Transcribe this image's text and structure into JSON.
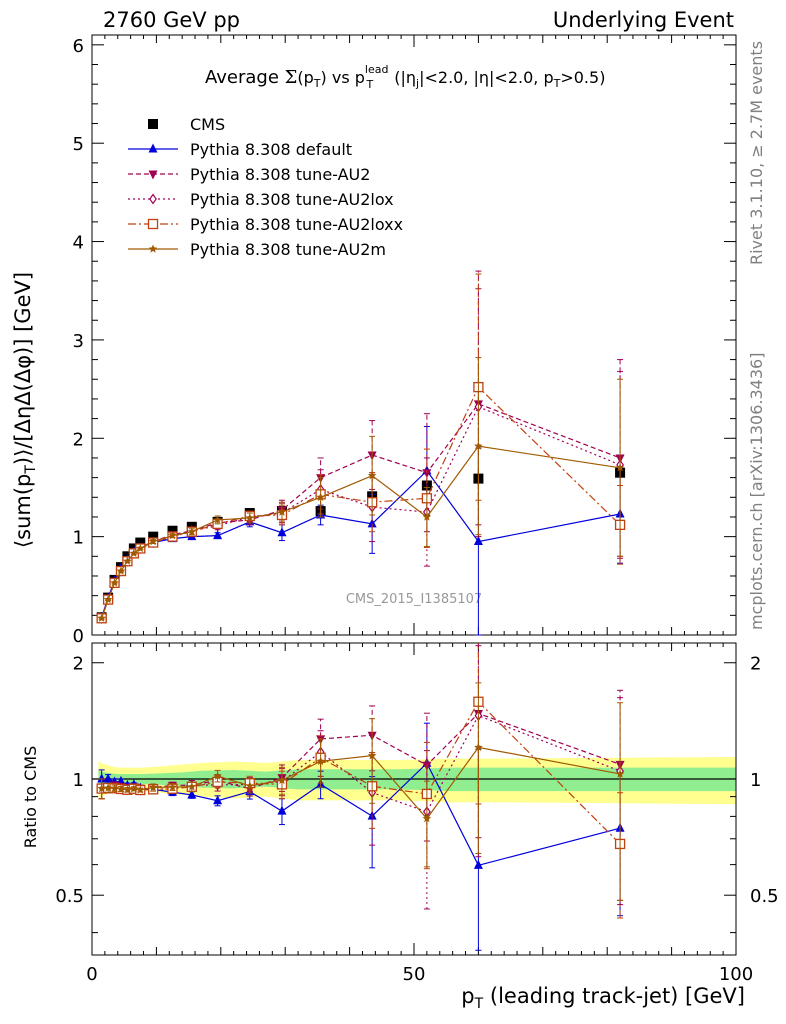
{
  "header": {
    "left": "2760 GeV pp",
    "right": "Underlying Event"
  },
  "side_labels": {
    "rivet": "Rivet 3.1.10, ≥ 2.7M events",
    "mcplots": "mcplots.cern.ch [arXiv:1306.3436]"
  },
  "watermark": "CMS_2015_I1385107",
  "chart_data": {
    "type": "line",
    "title": "Average Σ(pT) vs pT^lead (|ηj|<2.0, |η|<2.0, pT>0.5)",
    "title_parts": {
      "a": "Average ",
      "sigma": "Σ",
      "b": "(p",
      "sub_t": "T",
      "c": ") vs p",
      "sup_lead": "lead",
      "sub_t2": "T",
      "d": " (|η",
      "sub_j": "j",
      "e": "|<2.0, |η|<2.0, p",
      "sub_t3": "T",
      "f": ">0.5)"
    },
    "xlabel": "p_T (leading track-jet) [GeV]",
    "xlabel_parts": {
      "p": "p",
      "sub": "T",
      "rest": " (leading track-jet) [GeV]"
    },
    "ylabel": "⟨sum(p_T)⟩/[ΔηΔ(Δφ)] [GeV]",
    "ylabel_parts": {
      "a": "⟨sum(p",
      "sub": "T",
      "b": ")⟩/[ΔηΔ(Δφ)] [GeV]"
    },
    "ratio_ylabel": "Ratio to CMS",
    "xlim": [
      0,
      100
    ],
    "ylim": [
      0,
      6.1
    ],
    "ratio_ylim": [
      0.35,
      2.25
    ],
    "x_ticks": [
      0,
      50,
      100
    ],
    "y_ticks": [
      0,
      1,
      2,
      3,
      4,
      5,
      6
    ],
    "ratio_ticks": [
      0.5,
      1,
      2
    ],
    "legend_position": "top-left",
    "x": [
      1.5,
      2.5,
      3.5,
      4.5,
      5.5,
      6.5,
      7.5,
      9.5,
      12.5,
      15.5,
      19.5,
      24.5,
      29.5,
      35.5,
      43.5,
      52.0,
      60.0,
      82.0
    ],
    "series": [
      {
        "name": "CMS",
        "color": "#000000",
        "marker": "square-filled",
        "values": [
          0.18,
          0.38,
          0.56,
          0.69,
          0.8,
          0.88,
          0.94,
          1.0,
          1.06,
          1.1,
          1.15,
          1.24,
          1.26,
          1.26,
          1.41,
          1.52,
          1.59,
          1.65
        ],
        "errors": [
          0.01,
          0.01,
          0.01,
          0.01,
          0.01,
          0.01,
          0.01,
          0.01,
          0.01,
          0.01,
          0.01,
          0.01,
          0.01,
          0.02,
          0.04,
          0.06,
          0.1,
          0.15
        ]
      },
      {
        "name": "Pythia 8.308 default",
        "color": "#0000dd",
        "marker": "triangle-up",
        "dash": "",
        "values": [
          0.18,
          0.38,
          0.55,
          0.68,
          0.77,
          0.85,
          0.89,
          0.94,
          0.98,
          1.0,
          1.01,
          1.15,
          1.04,
          1.22,
          1.13,
          1.67,
          0.95,
          1.23
        ],
        "errors": [
          0.01,
          0.01,
          0.01,
          0.01,
          0.01,
          0.01,
          0.01,
          0.01,
          0.02,
          0.02,
          0.03,
          0.05,
          0.08,
          0.1,
          0.3,
          0.45,
          0.95,
          0.5
        ]
      },
      {
        "name": "Pythia 8.308 tune-AU2",
        "color": "#a00050",
        "marker": "triangle-down",
        "dash": "5,3",
        "values": [
          0.17,
          0.36,
          0.54,
          0.66,
          0.76,
          0.84,
          0.89,
          0.95,
          1.02,
          1.06,
          1.14,
          1.17,
          1.27,
          1.6,
          1.83,
          1.65,
          2.35,
          1.8
        ],
        "errors": [
          0.01,
          0.01,
          0.01,
          0.01,
          0.01,
          0.01,
          0.01,
          0.02,
          0.02,
          0.03,
          0.04,
          0.05,
          0.1,
          0.2,
          0.35,
          0.6,
          1.35,
          1.0
        ]
      },
      {
        "name": "Pythia 8.308 tune-AU2lox",
        "color": "#a0005a",
        "marker": "diamond-open",
        "dash": "2,3",
        "values": [
          0.17,
          0.36,
          0.53,
          0.65,
          0.75,
          0.83,
          0.88,
          0.94,
          1.0,
          1.06,
          1.11,
          1.2,
          1.24,
          1.48,
          1.3,
          1.25,
          2.32,
          1.73
        ],
        "errors": [
          0.01,
          0.01,
          0.01,
          0.01,
          0.01,
          0.01,
          0.01,
          0.02,
          0.02,
          0.03,
          0.04,
          0.05,
          0.1,
          0.2,
          0.35,
          0.55,
          1.2,
          0.95
        ]
      },
      {
        "name": "Pythia 8.308 tune-AU2loxx",
        "color": "#c04010",
        "marker": "square-open",
        "dash": "8,3,2,3",
        "values": [
          0.17,
          0.36,
          0.53,
          0.65,
          0.75,
          0.83,
          0.88,
          0.94,
          1.0,
          1.05,
          1.13,
          1.21,
          1.22,
          1.43,
          1.35,
          1.39,
          2.52,
          1.12
        ],
        "errors": [
          0.01,
          0.01,
          0.01,
          0.01,
          0.01,
          0.01,
          0.01,
          0.02,
          0.02,
          0.03,
          0.04,
          0.05,
          0.1,
          0.2,
          0.3,
          0.5,
          1.15,
          0.4
        ]
      },
      {
        "name": "Pythia 8.308 tune-AU2m",
        "color": "#a05a00",
        "marker": "star",
        "dash": "",
        "values": [
          0.17,
          0.36,
          0.53,
          0.65,
          0.75,
          0.83,
          0.88,
          0.95,
          1.01,
          1.05,
          1.17,
          1.19,
          1.25,
          1.4,
          1.62,
          1.2,
          1.92,
          1.7
        ],
        "errors": [
          0.01,
          0.01,
          0.01,
          0.01,
          0.01,
          0.01,
          0.01,
          0.02,
          0.02,
          0.03,
          0.04,
          0.05,
          0.1,
          0.2,
          0.4,
          0.3,
          0.9,
          0.9
        ]
      }
    ],
    "band": {
      "x": [
        1,
        2,
        3,
        4,
        5,
        6,
        7,
        8,
        11,
        14,
        17,
        22,
        27,
        32,
        40,
        48,
        56,
        64,
        100
      ],
      "inner": [
        0.05,
        0.04,
        0.035,
        0.03,
        0.03,
        0.03,
        0.03,
        0.03,
        0.035,
        0.04,
        0.05,
        0.055,
        0.045,
        0.06,
        0.06,
        0.06,
        0.07,
        0.07,
        0.07
      ],
      "outer": [
        0.11,
        0.09,
        0.08,
        0.07,
        0.07,
        0.07,
        0.07,
        0.07,
        0.08,
        0.09,
        0.1,
        0.11,
        0.1,
        0.12,
        0.12,
        0.12,
        0.13,
        0.13,
        0.14
      ],
      "inner_color": "#90ee90",
      "outer_color": "#ffff90"
    }
  }
}
